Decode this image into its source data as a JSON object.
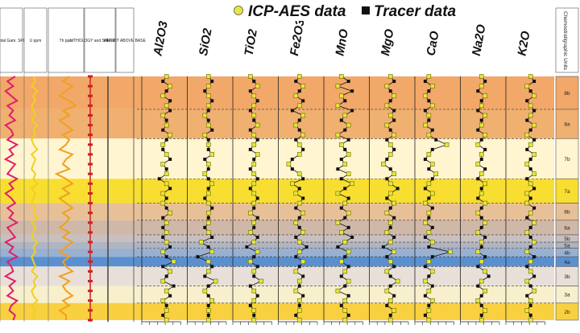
{
  "legend": {
    "icp_label": "ICP-AES data",
    "tracer_label": "Tracer data",
    "icp_color": "#e6e63c",
    "tracer_color": "#111111"
  },
  "colors": {
    "total_gr": "#e0206a",
    "uranium": "#f0d020",
    "thorium": "#f0a020",
    "lithology_marker": "#cc2222"
  },
  "log_headers": {
    "total_gr": "Total Gam. SPL",
    "uranium": "U ppm",
    "thorium": "Th ppm",
    "lithology": "LITHOLOGY and SAMPLE TYPE",
    "height": "HEIGHT ABOVE BASE"
  },
  "chemo_header": "Chemostratigraphic Units",
  "units": [
    {
      "label": "8b",
      "top": 0.0,
      "bottom": 0.135,
      "color": "#f2a868"
    },
    {
      "label": "8a",
      "top": 0.135,
      "bottom": 0.255,
      "color": "#f0b070"
    },
    {
      "label": "7b",
      "top": 0.255,
      "bottom": 0.42,
      "color": "#fff5d0"
    },
    {
      "label": "7a",
      "top": 0.42,
      "bottom": 0.52,
      "color": "#f8de30"
    },
    {
      "label": "6b",
      "top": 0.52,
      "bottom": 0.59,
      "color": "#e8c098"
    },
    {
      "label": "6a",
      "top": 0.59,
      "bottom": 0.65,
      "color": "#d0b8a8"
    },
    {
      "label": "5b",
      "top": 0.65,
      "bottom": 0.68,
      "color": "#c8c0c0"
    },
    {
      "label": "5a",
      "top": 0.68,
      "bottom": 0.705,
      "color": "#b0b4c0"
    },
    {
      "label": "4b",
      "top": 0.705,
      "bottom": 0.74,
      "color": "#9ab0d0"
    },
    {
      "label": "4a",
      "top": 0.74,
      "bottom": 0.78,
      "color": "#5a90d0"
    },
    {
      "label": "3b",
      "top": 0.78,
      "bottom": 0.86,
      "color": "#e8e0d8"
    },
    {
      "label": "3a",
      "top": 0.86,
      "bottom": 0.93,
      "color": "#f8efcc"
    },
    {
      "label": "2b",
      "top": 0.93,
      "bottom": 1.0,
      "color": "#f8d040"
    }
  ],
  "chart_data": {
    "type": "line",
    "depth_samples": [
      0.0,
      0.02,
      0.04,
      0.06,
      0.08,
      0.1,
      0.12,
      0.14,
      0.16,
      0.18,
      0.2,
      0.22,
      0.24,
      0.26,
      0.28,
      0.3,
      0.32,
      0.34,
      0.36,
      0.38,
      0.4,
      0.42,
      0.44,
      0.46,
      0.48,
      0.5,
      0.52,
      0.54,
      0.56,
      0.58,
      0.6,
      0.62,
      0.64,
      0.66,
      0.68,
      0.7,
      0.72,
      0.74,
      0.76,
      0.78,
      0.8,
      0.82,
      0.84,
      0.86,
      0.88,
      0.9,
      0.92,
      0.94,
      0.96,
      0.98,
      1.0
    ],
    "series": [
      {
        "name": "Al2O3",
        "title": "Al2O3",
        "values": [
          0.6,
          0.5,
          0.7,
          0.6,
          0.5,
          0.7,
          0.6,
          0.7,
          0.5,
          0.6,
          0.6,
          0.5,
          0.7,
          0.6,
          0.5,
          0.5,
          0.6,
          0.7,
          0.5,
          0.6,
          0.6,
          0.4,
          0.6,
          0.7,
          0.5,
          0.6,
          0.5,
          0.6,
          0.7,
          0.5,
          0.6,
          0.5,
          0.6,
          0.5,
          0.6,
          0.7,
          0.5,
          0.6,
          0.8,
          0.5,
          0.7,
          0.6,
          0.5,
          0.8,
          0.6,
          0.7,
          0.5,
          0.6,
          0.6,
          0.5,
          0.6
        ]
      },
      {
        "name": "SiO2",
        "title": "SiO2",
        "values": [
          0.5,
          0.6,
          0.5,
          0.4,
          0.5,
          0.6,
          0.5,
          0.5,
          0.4,
          0.5,
          0.5,
          0.6,
          0.4,
          0.5,
          0.5,
          0.5,
          0.6,
          0.4,
          0.5,
          0.5,
          0.4,
          0.5,
          0.6,
          0.5,
          0.5,
          0.4,
          0.5,
          0.6,
          0.5,
          0.5,
          0.5,
          0.4,
          0.5,
          0.6,
          0.3,
          0.5,
          0.6,
          0.2,
          0.5,
          0.6,
          0.5,
          0.4,
          0.7,
          0.5,
          0.4,
          0.5,
          0.6,
          0.5,
          0.5,
          0.5,
          0.5
        ]
      },
      {
        "name": "TiO2",
        "title": "TiO2",
        "values": [
          0.4,
          0.5,
          0.6,
          0.4,
          0.5,
          0.6,
          0.5,
          0.4,
          0.5,
          0.5,
          0.6,
          0.4,
          0.5,
          0.6,
          0.5,
          0.4,
          0.6,
          0.5,
          0.5,
          0.4,
          0.5,
          0.6,
          0.5,
          0.4,
          0.5,
          0.6,
          0.5,
          0.5,
          0.4,
          0.6,
          0.5,
          0.5,
          0.4,
          0.6,
          0.5,
          0.3,
          0.6,
          0.5,
          0.4,
          0.6,
          0.5,
          0.5,
          0.7,
          0.4,
          0.5,
          0.6,
          0.5,
          0.4,
          0.5,
          0.5,
          0.5
        ]
      },
      {
        "name": "Fe2O3",
        "title": "Fe2O3",
        "values": [
          0.5,
          0.4,
          0.6,
          0.5,
          0.4,
          0.6,
          0.5,
          0.3,
          0.6,
          0.5,
          0.4,
          0.5,
          0.6,
          0.4,
          0.5,
          0.6,
          0.5,
          0.3,
          0.2,
          0.3,
          0.5,
          0.6,
          0.3,
          0.5,
          0.4,
          0.6,
          0.5,
          0.4,
          0.6,
          0.5,
          0.4,
          0.5,
          0.6,
          0.4,
          0.5,
          0.7,
          0.5,
          0.4,
          0.6,
          0.5,
          0.4,
          0.6,
          0.5,
          0.5,
          0.4,
          0.6,
          0.5,
          0.5,
          0.5,
          0.4,
          0.5
        ]
      },
      {
        "name": "MnO",
        "title": "MnO",
        "values": [
          0.4,
          0.6,
          0.3,
          0.7,
          0.4,
          0.5,
          0.3,
          0.7,
          0.5,
          0.4,
          0.6,
          0.5,
          0.3,
          0.6,
          0.4,
          0.5,
          0.6,
          0.4,
          0.5,
          0.3,
          0.6,
          0.4,
          0.7,
          0.5,
          0.3,
          0.6,
          0.5,
          0.4,
          0.6,
          0.5,
          0.3,
          0.6,
          0.4,
          0.7,
          0.5,
          0.3,
          0.6,
          0.5,
          0.4,
          0.6,
          0.5,
          0.4,
          0.6,
          0.5,
          0.3,
          0.6,
          0.5,
          0.4,
          0.5,
          0.6,
          0.5
        ]
      },
      {
        "name": "MgO",
        "title": "MgO",
        "values": [
          0.5,
          0.6,
          0.4,
          0.5,
          0.6,
          0.5,
          0.4,
          0.6,
          0.5,
          0.6,
          0.4,
          0.5,
          0.6,
          0.4,
          0.5,
          0.6,
          0.5,
          0.4,
          0.3,
          0.5,
          0.6,
          0.4,
          0.5,
          0.7,
          0.5,
          0.4,
          0.6,
          0.5,
          0.4,
          0.6,
          0.5,
          0.5,
          0.4,
          0.6,
          0.5,
          0.3,
          0.6,
          0.4,
          0.5,
          0.6,
          0.4,
          0.5,
          0.7,
          0.5,
          0.4,
          0.6,
          0.5,
          0.4,
          0.6,
          0.5,
          0.5
        ]
      },
      {
        "name": "CaO",
        "title": "CaO",
        "values": [
          0.3,
          0.2,
          0.4,
          0.3,
          0.2,
          0.3,
          0.4,
          0.2,
          0.3,
          0.3,
          0.2,
          0.4,
          0.3,
          0.5,
          0.8,
          0.4,
          0.3,
          0.2,
          0.4,
          0.3,
          0.5,
          0.4,
          0.3,
          0.2,
          0.4,
          0.3,
          0.2,
          0.4,
          0.3,
          0.3,
          0.2,
          0.4,
          0.3,
          0.2,
          0.4,
          0.3,
          0.9,
          0.4,
          0.3,
          0.2,
          0.4,
          0.3,
          0.2,
          0.4,
          0.3,
          0.2,
          0.4,
          0.3,
          0.3,
          0.2,
          0.3
        ]
      },
      {
        "name": "Na2O",
        "title": "Na2O",
        "values": [
          0.5,
          0.6,
          0.5,
          0.4,
          0.6,
          0.5,
          0.5,
          0.4,
          0.6,
          0.5,
          0.5,
          0.4,
          0.6,
          0.5,
          0.4,
          0.6,
          0.5,
          0.5,
          0.4,
          0.6,
          0.5,
          0.4,
          0.6,
          0.5,
          0.5,
          0.4,
          0.6,
          0.5,
          0.4,
          0.5,
          0.6,
          0.5,
          0.4,
          0.6,
          0.5,
          0.5,
          0.4,
          0.6,
          0.5,
          0.4,
          0.6,
          0.7,
          0.5,
          0.4,
          0.6,
          0.5,
          0.4,
          0.5,
          0.6,
          0.5,
          0.5
        ]
      },
      {
        "name": "K2O",
        "title": "K2O",
        "values": [
          0.6,
          0.7,
          0.5,
          0.6,
          0.7,
          0.5,
          0.6,
          0.7,
          0.6,
          0.5,
          0.7,
          0.6,
          0.5,
          0.7,
          0.6,
          0.5,
          0.7,
          0.6,
          0.5,
          0.6,
          0.7,
          0.5,
          0.6,
          0.7,
          0.5,
          0.6,
          0.5,
          0.7,
          0.6,
          0.5,
          0.7,
          0.6,
          0.5,
          0.6,
          0.7,
          0.6,
          0.5,
          0.7,
          0.6,
          0.5,
          0.6,
          0.7,
          0.5,
          0.6,
          0.7,
          0.5,
          0.6,
          0.6,
          0.5,
          0.6,
          0.6
        ]
      }
    ],
    "gamma_logs": [
      {
        "name": "Total Gam. SPL",
        "values": [
          0.7,
          0.3,
          0.6,
          0.2,
          0.5,
          0.8,
          0.3,
          0.6,
          0.4,
          0.7,
          0.2,
          0.5,
          0.6,
          0.3,
          0.8,
          0.4,
          0.6,
          0.2,
          0.7,
          0.5,
          0.3,
          0.8,
          0.4,
          0.6,
          0.2,
          0.5,
          0.7,
          0.3,
          0.6,
          0.4,
          0.8,
          0.3,
          0.5,
          0.7,
          0.2,
          0.6,
          0.4,
          0.8,
          0.3,
          0.5,
          0.6,
          0.2,
          0.7,
          0.4,
          0.6,
          0.3,
          0.8,
          0.5,
          0.4,
          0.7,
          0.6
        ]
      },
      {
        "name": "U ppm",
        "values": [
          0.4,
          0.5,
          0.3,
          0.6,
          0.4,
          0.5,
          0.3,
          0.4,
          0.5,
          0.3,
          0.6,
          0.4,
          0.5,
          0.3,
          0.4,
          0.6,
          0.3,
          0.5,
          0.4,
          0.3,
          0.5,
          0.4,
          0.6,
          0.3,
          0.5,
          0.4,
          0.3,
          0.5,
          0.4,
          0.6,
          0.3,
          0.5,
          0.4,
          0.3,
          0.6,
          0.4,
          0.5,
          0.3,
          0.4,
          0.5,
          0.3,
          0.6,
          0.4,
          0.5,
          0.3,
          0.4,
          0.6,
          0.3,
          0.5,
          0.4,
          0.4
        ]
      },
      {
        "name": "Th ppm",
        "values": [
          0.6,
          0.4,
          0.7,
          0.5,
          0.3,
          0.6,
          0.8,
          0.4,
          0.6,
          0.3,
          0.5,
          0.7,
          0.4,
          0.6,
          0.5,
          0.3,
          0.7,
          0.5,
          0.4,
          0.6,
          0.2,
          0.5,
          0.7,
          0.4,
          0.6,
          0.3,
          0.5,
          0.7,
          0.4,
          0.6,
          0.5,
          0.3,
          0.6,
          0.4,
          0.7,
          0.5,
          0.3,
          0.6,
          0.4,
          0.5,
          0.7,
          0.3,
          0.6,
          0.4,
          0.5,
          0.7,
          0.4,
          0.6,
          0.3,
          0.5,
          0.5
        ]
      }
    ]
  }
}
